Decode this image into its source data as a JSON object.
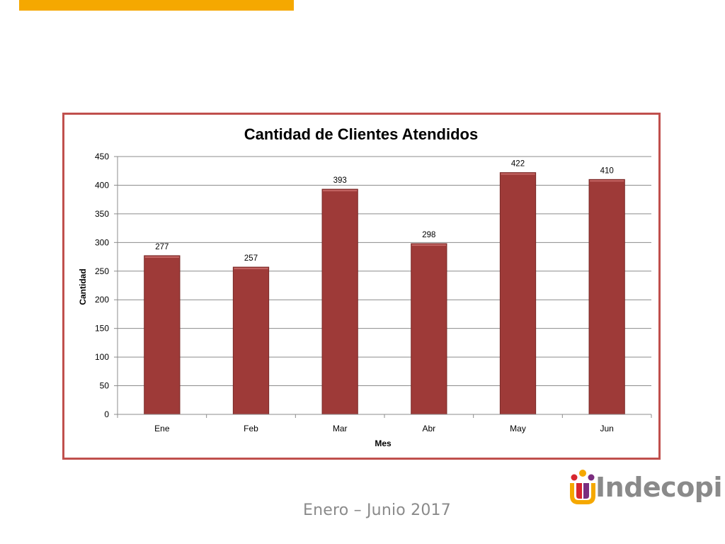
{
  "colors": {
    "accent_bar": "#f5a800",
    "frame_border": "#c0504d",
    "bar_fill": "#9e3a38",
    "gridline": "#8c8c8c",
    "logo_text": "#8a8a8a",
    "logo_orange": "#f5a800",
    "logo_red": "#d7262f",
    "logo_purple": "#7b2d7f"
  },
  "footer": {
    "date_range": "Enero – Junio 2017"
  },
  "logo": {
    "text": "Indecopi"
  },
  "chart_data": {
    "type": "bar",
    "title": "Cantidad de Clientes Atendidos",
    "xlabel": "Mes",
    "ylabel": "Cantidad",
    "categories": [
      "Ene",
      "Feb",
      "Mar",
      "Abr",
      "May",
      "Jun"
    ],
    "values": [
      277,
      257,
      393,
      298,
      422,
      410
    ],
    "data_labels": [
      "277",
      "257",
      "393",
      "298",
      "422",
      "410"
    ],
    "ylim": [
      0,
      450
    ],
    "yticks": [
      0,
      50,
      100,
      150,
      200,
      250,
      300,
      350,
      400,
      450
    ],
    "grid": true,
    "legend": "none"
  }
}
